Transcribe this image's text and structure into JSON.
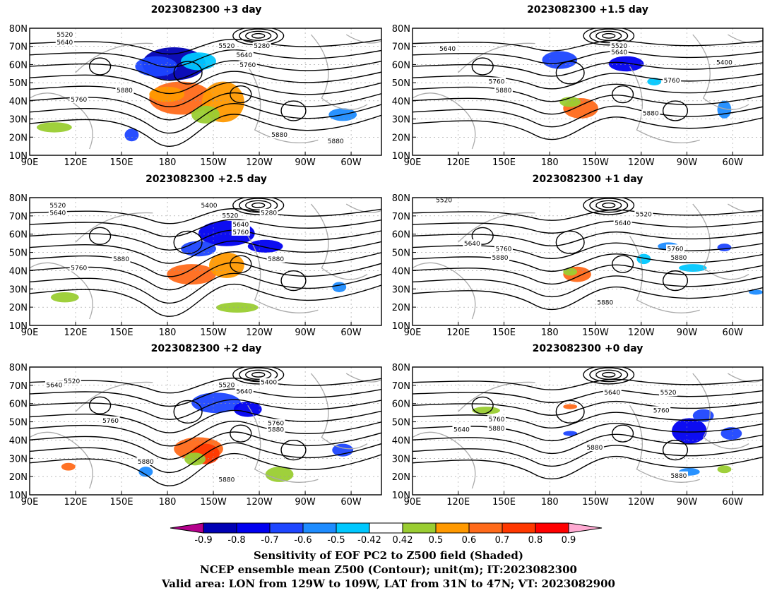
{
  "panels": [
    {
      "title": "2023082300 +3 day"
    },
    {
      "title": "2023082300 +1.5 day"
    },
    {
      "title": "2023082300 +2.5 day"
    },
    {
      "title": "2023082300 +1 day"
    },
    {
      "title": "2023082300 +2 day"
    },
    {
      "title": "2023082300 +0 day"
    }
  ],
  "axes": {
    "lat_labels": [
      "80N",
      "70N",
      "60N",
      "50N",
      "40N",
      "30N",
      "20N",
      "10N"
    ],
    "lon_labels": [
      "90E",
      "120E",
      "150E",
      "180",
      "150W",
      "120W",
      "90W",
      "60W"
    ]
  },
  "contour_labels": [
    [
      "5520",
      "5640",
      "5280",
      "5520",
      "5640",
      "5760",
      "5760",
      "5880",
      "5880",
      "5880"
    ],
    [
      "5640",
      "5520",
      "5640",
      "5400",
      "5760",
      "5880",
      "5760",
      "5880"
    ],
    [
      "5520",
      "5640",
      "5400",
      "5280",
      "5520",
      "5640",
      "5760",
      "5760",
      "5880",
      "5880"
    ],
    [
      "5520",
      "5520",
      "5640",
      "5640",
      "5760",
      "5880",
      "5760",
      "5880",
      "5880"
    ],
    [
      "5640",
      "5520",
      "5520",
      "5400",
      "5640",
      "5760",
      "5760",
      "5880",
      "5880",
      "5880"
    ],
    [
      "5640",
      "5520",
      "5760",
      "5640",
      "5760",
      "5880",
      "5880",
      "5880"
    ]
  ],
  "colorbar": {
    "ticks": [
      "-0.9",
      "-0.8",
      "-0.7",
      "-0.6",
      "-0.5",
      "-0.42",
      "0.42",
      "0.5",
      "0.6",
      "0.7",
      "0.8",
      "0.9"
    ],
    "colors": [
      "#0000b4",
      "#0000f0",
      "#1e46ff",
      "#1e8cff",
      "#00c8ff",
      "#ffffff",
      "#9acd32",
      "#ff9900",
      "#ff6a1a",
      "#ff3800",
      "#ff0000"
    ],
    "low_extend_color": "#b4008c",
    "high_extend_color": "#ffaad2"
  },
  "caption": {
    "line1": "Sensitivity of EOF PC2 to Z500 field (Shaded)",
    "line2": "NCEP ensemble mean Z500 (Contour); unit(m); IT:2023082300",
    "line3": "Valid area: LON from 129W to 109W, LAT from 31N to 47N; VT: 2023082900"
  }
}
